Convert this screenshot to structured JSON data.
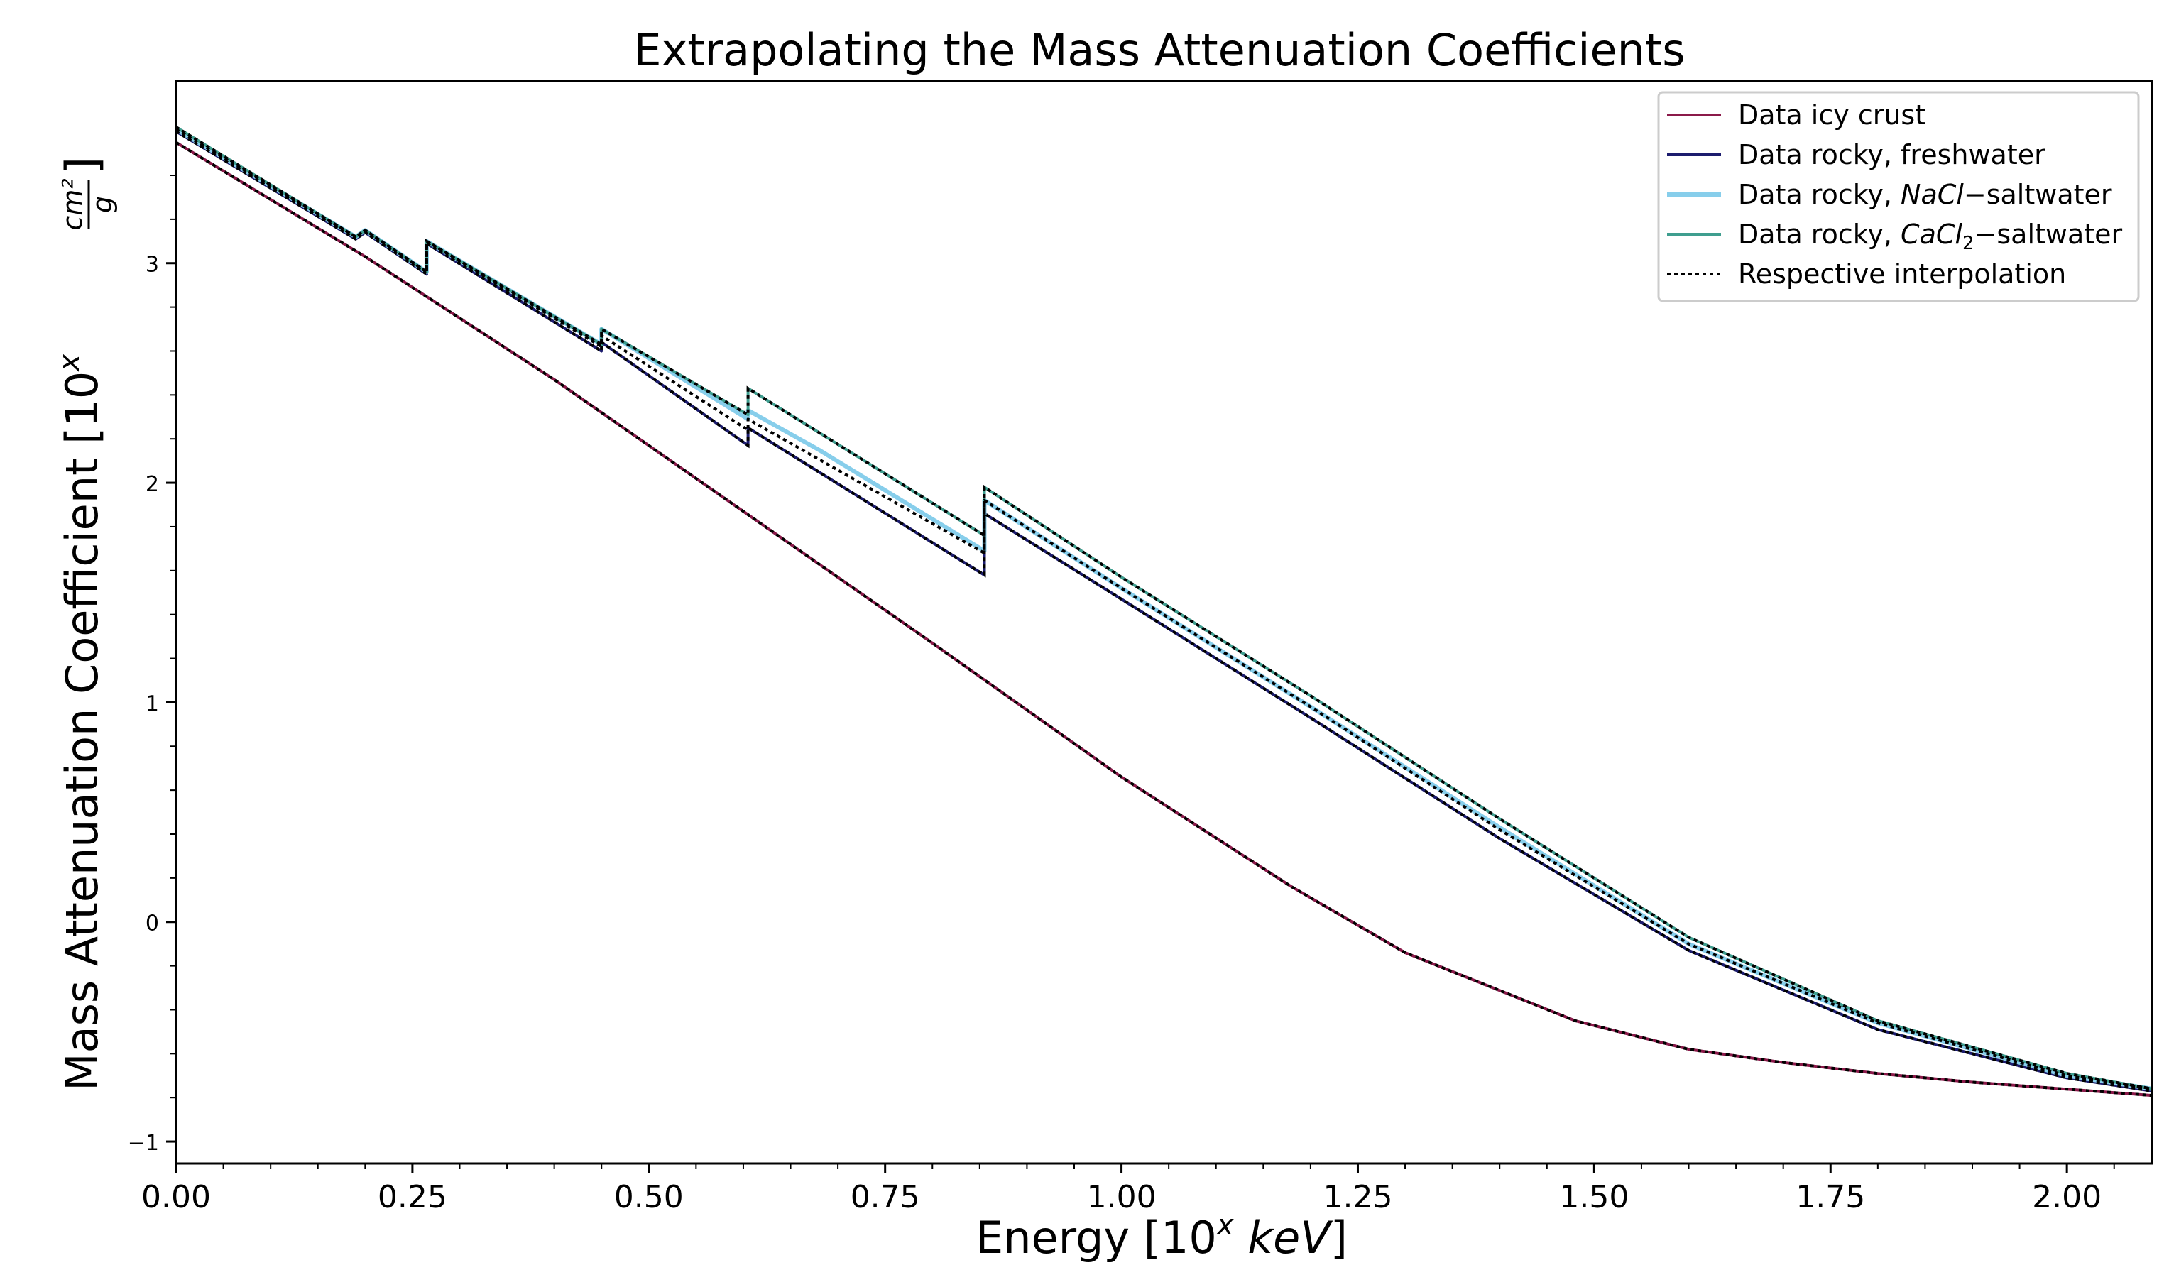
{
  "chart_data": {
    "type": "line",
    "title": "Extrapolating the Mass Attenuation Coefficients",
    "xlabel": "Energy [10^x keV]",
    "xlabel_parts": {
      "prefix": "Energy [10",
      "sup": "x",
      "unit": "keV",
      "suffix": "]"
    },
    "ylabel": "Mass Attenuation Coefficient [10^x cm²/g]",
    "ylabel_parts": {
      "prefix": "Mass Attenuation Coefficient [10",
      "sup": "x",
      "num": "cm²",
      "den": "g",
      "suffix": "]"
    },
    "xlim": [
      0.0,
      2.09
    ],
    "ylim": [
      -1.1,
      3.83
    ],
    "xticks": [
      0.0,
      0.25,
      0.5,
      0.75,
      1.0,
      1.25,
      1.5,
      1.75,
      2.0
    ],
    "xtick_labels": [
      "0.00",
      "0.25",
      "0.50",
      "0.75",
      "1.00",
      "1.25",
      "1.50",
      "1.75",
      "2.00"
    ],
    "yticks": [
      -1,
      0,
      1,
      2,
      3
    ],
    "ytick_labels": [
      "−1",
      "0",
      "1",
      "2",
      "3"
    ],
    "grid": false,
    "legend_position": "top-right",
    "series": [
      {
        "name": "Data icy crust",
        "legend_parts": {
          "a": "Data icy crust",
          "i": "",
          "sub": "",
          "b": ""
        },
        "color": "#8b1a4a",
        "x": [
          0.0,
          0.2,
          0.4,
          0.6,
          0.8,
          1.0,
          1.18,
          1.3,
          1.48,
          1.6,
          1.7,
          1.8,
          1.9,
          2.09
        ],
        "y": [
          3.55,
          3.03,
          2.47,
          1.87,
          1.27,
          0.66,
          0.16,
          -0.14,
          -0.45,
          -0.58,
          -0.64,
          -0.69,
          -0.73,
          -0.79
        ]
      },
      {
        "name": "Data rocky, freshwater",
        "legend_parts": {
          "a": "Data rocky, freshwater",
          "i": "",
          "sub": "",
          "b": ""
        },
        "color": "#1c1c6e",
        "x": [
          0.0,
          0.19,
          0.2,
          0.265,
          0.265,
          0.45,
          0.45,
          0.605,
          0.605,
          0.855,
          0.855,
          1.0,
          1.2,
          1.4,
          1.6,
          1.8,
          2.0,
          2.09
        ],
        "y": [
          3.6,
          3.11,
          3.14,
          2.95,
          3.09,
          2.6,
          2.64,
          2.17,
          2.25,
          1.58,
          1.86,
          1.47,
          0.93,
          0.38,
          -0.13,
          -0.49,
          -0.71,
          -0.77
        ]
      },
      {
        "name": "Data rocky, NaCl−saltwater",
        "legend_parts": {
          "a": "Data rocky, ",
          "i": "NaCl",
          "sub": "",
          "b": "−saltwater"
        },
        "color": "#87ceeb",
        "x": [
          0.0,
          0.19,
          0.2,
          0.265,
          0.265,
          0.45,
          0.45,
          0.605,
          0.605,
          0.68,
          0.855,
          0.855,
          1.0,
          1.2,
          1.4,
          1.6,
          1.8,
          2.0,
          2.09
        ],
        "y": [
          3.61,
          3.12,
          3.15,
          2.96,
          3.1,
          2.63,
          2.7,
          2.29,
          2.33,
          2.15,
          1.69,
          1.92,
          1.52,
          0.98,
          0.43,
          -0.1,
          -0.46,
          -0.7,
          -0.76
        ]
      },
      {
        "name": "Data rocky, CaCl2−saltwater",
        "legend_parts": {
          "a": "Data rocky, ",
          "i": "CaCl",
          "sub": "2",
          "b": "−saltwater"
        },
        "color": "#3f9e8f",
        "x": [
          0.0,
          0.19,
          0.2,
          0.265,
          0.265,
          0.45,
          0.45,
          0.605,
          0.605,
          0.855,
          0.855,
          1.0,
          1.2,
          1.4,
          1.6,
          1.8,
          2.0,
          2.09
        ],
        "y": [
          3.62,
          3.12,
          3.15,
          2.96,
          3.1,
          2.63,
          2.7,
          2.31,
          2.43,
          1.76,
          1.98,
          1.57,
          1.03,
          0.47,
          -0.07,
          -0.45,
          -0.69,
          -0.76
        ]
      },
      {
        "name": "Respective interpolation",
        "legend_parts": {
          "a": "Respective interpolation",
          "i": "",
          "sub": "",
          "b": ""
        },
        "color": "#000000",
        "dashed": true,
        "x": [
          0.0,
          0.19,
          0.2,
          0.265,
          0.265,
          0.45,
          0.45,
          0.605,
          0.605,
          0.855,
          0.855,
          1.0,
          1.2,
          1.4,
          1.6,
          1.8,
          2.0,
          2.09
        ],
        "y": [
          3.61,
          3.12,
          3.15,
          2.96,
          3.1,
          2.62,
          2.67,
          2.24,
          2.29,
          1.68,
          1.92,
          1.52,
          0.98,
          0.42,
          -0.1,
          -0.46,
          -0.7,
          -0.76
        ]
      }
    ],
    "interpolation_overlays": [
      {
        "of": "Data icy crust",
        "x": [
          0.0,
          0.2,
          0.4,
          0.6,
          0.8,
          1.0,
          1.18,
          1.3,
          1.48,
          1.6,
          1.7,
          1.8,
          1.9,
          2.09
        ],
        "y": [
          3.55,
          3.03,
          2.47,
          1.87,
          1.27,
          0.66,
          0.16,
          -0.14,
          -0.45,
          -0.58,
          -0.64,
          -0.69,
          -0.73,
          -0.79
        ]
      },
      {
        "of": "Data rocky, freshwater",
        "x": [
          0.0,
          0.19,
          0.2,
          0.265,
          0.265,
          0.45,
          0.45,
          0.605,
          0.605,
          0.855,
          0.855,
          1.0,
          1.2,
          1.4,
          1.6,
          1.8,
          2.0,
          2.09
        ],
        "y": [
          3.6,
          3.11,
          3.14,
          2.95,
          3.09,
          2.6,
          2.64,
          2.17,
          2.25,
          1.58,
          1.86,
          1.47,
          0.93,
          0.38,
          -0.13,
          -0.49,
          -0.71,
          -0.77
        ]
      },
      {
        "of": "Data rocky, CaCl2−saltwater",
        "x": [
          0.0,
          0.19,
          0.2,
          0.265,
          0.265,
          0.45,
          0.45,
          0.605,
          0.605,
          0.855,
          0.855,
          1.0,
          1.2,
          1.4,
          1.6,
          1.8,
          2.0,
          2.09
        ],
        "y": [
          3.62,
          3.12,
          3.15,
          2.96,
          3.1,
          2.63,
          2.7,
          2.31,
          2.43,
          1.76,
          1.98,
          1.57,
          1.03,
          0.47,
          -0.07,
          -0.45,
          -0.69,
          -0.76
        ]
      }
    ]
  }
}
